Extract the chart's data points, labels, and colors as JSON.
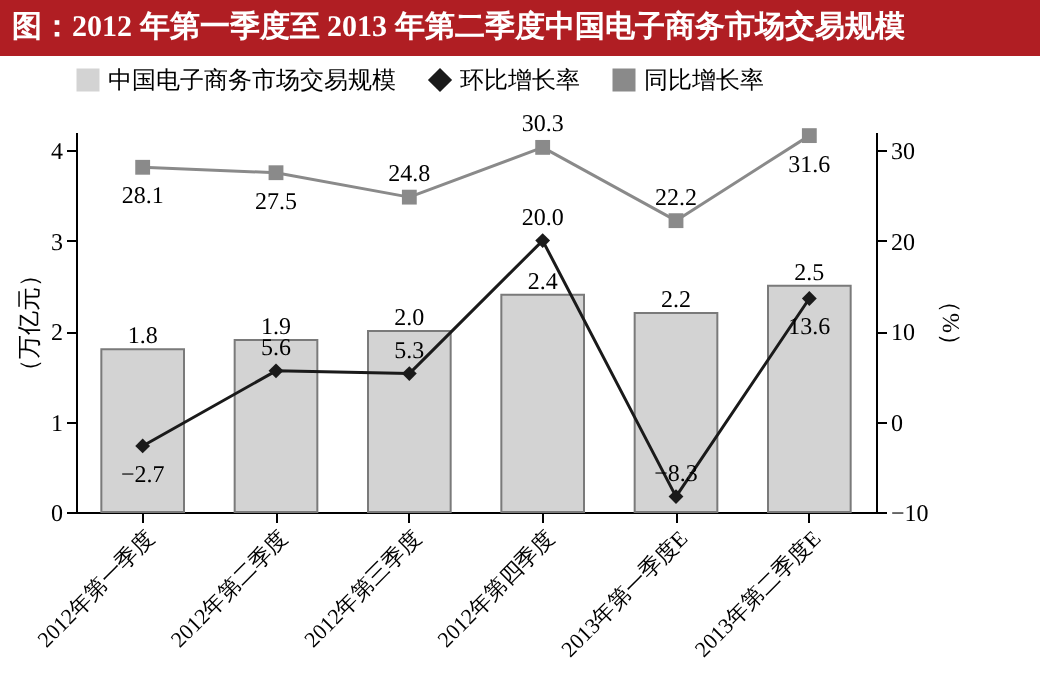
{
  "chart_data": {
    "type": "bar",
    "title": "图：2012 年第一季度至 2013 年第二季度中国电子商务市场交易规模",
    "ylabel": "（万亿元）",
    "y2label": "（%）",
    "categories": [
      "2012年第一季度",
      "2012年第二季度",
      "2012年第三季度",
      "2012年第四季度",
      "2013年第一季度E",
      "2013年第二季度E"
    ],
    "series": [
      {
        "name": "中国电子商务市场交易规模",
        "color": "#d3d3d3",
        "values": [
          1.8,
          1.9,
          2.0,
          2.4,
          2.2,
          2.5
        ],
        "value_labels": [
          "1.8",
          "1.9",
          "2.0",
          "2.4",
          "2.2",
          "2.5"
        ]
      },
      {
        "name": "环比增长率",
        "type": "line",
        "axis": "y2",
        "marker": "diamond",
        "color": "#1a1a1a",
        "values": [
          -2.7,
          5.6,
          5.3,
          20.0,
          -8.3,
          13.6
        ],
        "value_labels": [
          "−2.7",
          "5.6",
          "5.3",
          "20.0",
          "−8.3",
          "13.6"
        ]
      },
      {
        "name": "同比增长率",
        "type": "line",
        "axis": "y2",
        "marker": "square",
        "color": "#8a8a8a",
        "values": [
          28.1,
          27.5,
          24.8,
          30.3,
          22.2,
          31.6
        ],
        "value_labels": [
          "28.1",
          "27.5",
          "24.8",
          "30.3",
          "22.2",
          "31.6"
        ]
      }
    ],
    "ylim": [
      0,
      4.2
    ],
    "yticks": [
      0,
      1,
      2,
      3,
      4
    ],
    "y2lim": [
      -10,
      32
    ],
    "y2ticks": [
      -10,
      0,
      10,
      20,
      30
    ],
    "legend": "top",
    "grid": false,
    "line_style": "solid"
  }
}
